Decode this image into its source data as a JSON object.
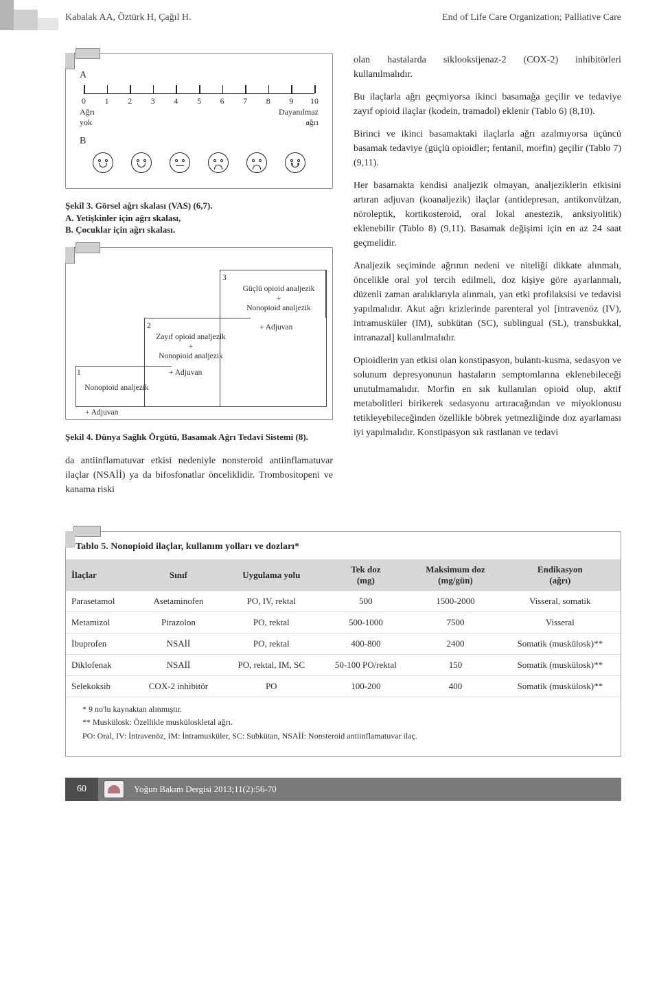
{
  "header": {
    "authors": "Kabalak AA, Öztürk H, Çağıl H.",
    "title_right": "End of Life Care Organization; Palliative Care"
  },
  "fig3": {
    "section_a": "A",
    "section_b": "B",
    "scale_min": 0,
    "scale_max": 10,
    "left_label_1": "Ağrı",
    "left_label_2": "yok",
    "right_label_1": "Dayanılmaz",
    "right_label_2": "ağrı",
    "ticks": [
      0,
      1,
      2,
      3,
      4,
      5,
      6,
      7,
      8,
      9,
      10
    ],
    "faces": [
      "happy",
      "happy",
      "flat",
      "sad",
      "sad",
      "cry"
    ],
    "caption": "Şekil 3. Görsel ağrı skalası (VAS) (6,7).\nA. Yetişkinler için ağrı skalası,\nB. Çocuklar için ağrı skalası."
  },
  "fig4": {
    "step1_num": "1",
    "step1_main": "Nonopioid analjezik",
    "step1_adj": "+ Adjuvan",
    "step2_num": "2",
    "step2_main": "Zayıf opioid analjezik\n+\nNonopioid analjezik",
    "step2_adj": "+ Adjuvan",
    "step3_num": "3",
    "step3_main": "Güçlü opioid analjezik\n+\nNonopioid analjezik",
    "step3_adj": "+ Adjuvan",
    "caption": "Şekil 4. Dünya Sağlık Örgütü, Basamak Ağrı Tedavi Sistemi (8)."
  },
  "left_paragraph": "da antiinflamatuvar etkisi nedeniyle nonsteroid antiinflamatuvar ilaçlar (NSAİİ) ya da bifosfonatlar önceliklidir. Trombositopeni ve kanama riski",
  "right_paragraphs": [
    "olan hastalarda siklooksijenaz-2 (COX-2) inhibitörleri kullanılmalıdır.",
    "Bu ilaçlarla ağrı geçmiyorsa ikinci basamağa geçilir ve tedaviye zayıf opioid ilaçlar (kodein, tramadol) eklenir (Tablo 6) (8,10).",
    "Birinci ve ikinci basamaktaki ilaçlarla ağrı azalmıyorsa üçüncü basamak tedaviye (güçlü opioidler; fentanil, morfin) geçilir (Tablo 7) (9,11).",
    "Her basamakta kendisi analjezik olmayan, analjeziklerin etkisini artıran adjuvan (koanaljezik) ilaçlar (antidepresan, antikonvülzan, nöroleptik, kortikosteroid, oral lokal anestezik, anksiyolitik) eklenebilir (Tablo 8) (9,11). Basamak değişimi için en az 24 saat geçmelidir.",
    "Analjezik seçiminde ağrının nedeni ve niteliği dikkate alınmalı, öncelikle oral yol tercih edilmeli, doz kişiye göre ayarlanmalı, düzenli zaman aralıklarıyla alınmalı, yan etki profilaksisi ve tedavisi yapılmalıdır. Akut ağrı krizlerinde parenteral yol [intravenöz (IV), intramusküler (IM), subkütan (SC), sublingual (SL), transbukkal, intranazal] kullanılmalıdır.",
    "Opioidlerin yan etkisi olan konstipasyon, bulantı-kusma, sedasyon ve solunum depresyonunun hastaların semptomlarına eklenebileceği unutulmamalıdır. Morfin en sık kullanılan opioid olup, aktif metabolitleri birikerek sedasyonu artıracağından ve miyoklonusu tetikleyebileceğinden özellikle böbrek yetmezliğinde doz ayarlaması iyi yapılmalıdır. Konstipasyon sık rastlanan ve tedavi"
  ],
  "table5": {
    "title": "Tablo 5. Nonopioid ilaçlar, kullanım yolları ve dozları*",
    "columns": [
      "İlaçlar",
      "Sınıf",
      "Uygulama yolu",
      "Tek doz\n(mg)",
      "Maksimum doz\n(mg/gün)",
      "Endikasyon\n(ağrı)"
    ],
    "rows": [
      [
        "Parasetamol",
        "Asetaminofen",
        "PO, IV, rektal",
        "500",
        "1500-2000",
        "Visseral, somatik"
      ],
      [
        "Metamizol",
        "Pirazolon",
        "PO, rektal",
        "500-1000",
        "7500",
        "Visseral"
      ],
      [
        "İbuprofen",
        "NSAİİ",
        "PO, rektal",
        "400-800",
        "2400",
        "Somatik (muskülosk)**"
      ],
      [
        "Diklofenak",
        "NSAİİ",
        "PO, rektal, IM, SC",
        "50-100 PO/rektal",
        "150",
        "Somatik (muskülosk)**"
      ],
      [
        "Selekoksib",
        "COX-2 inhibitör",
        "PO",
        "100-200",
        "400",
        "Somatik (muskülosk)**"
      ]
    ],
    "notes": [
      "* 9 no'lu kaynaktan alınmıştır.",
      "** Muskülosk: Özellikle musküloskletal ağrı.",
      "PO: Oral, IV: İntravenöz, IM: İntramusküler, SC: Subkütan, NSAİİ: Nonsteroid antiinflamatuvar ilaç."
    ]
  },
  "footer": {
    "page": "60",
    "journal": "Yoğun Bakım Dergisi 2013;11(2):56-70"
  },
  "colors": {
    "header_tab_dark": "#b5b5b5",
    "table_header_bg": "#d7d7d7",
    "footer_bg": "#7a7a7a",
    "footer_page_bg": "#4d4d4d"
  }
}
